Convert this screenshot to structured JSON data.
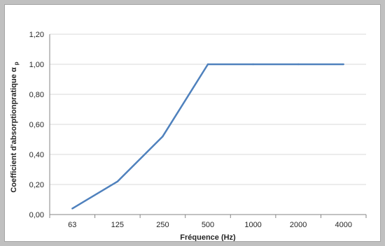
{
  "chart_data": {
    "type": "line",
    "categories": [
      "63",
      "125",
      "250",
      "500",
      "1000",
      "2000",
      "4000"
    ],
    "series": [
      {
        "values": [
          0.04,
          0.22,
          0.52,
          1.0,
          1.0,
          1.0,
          1.0
        ],
        "color": "#4f81bd"
      }
    ],
    "xlabel": "Fréquence (Hz)",
    "ylabel_main": "Coefficient d'absorptionpratique α",
    "ylabel_sub": "p",
    "ylim": [
      0,
      1.2
    ],
    "yticks": [
      0,
      0.2,
      0.4,
      0.6,
      0.8,
      1.0,
      1.2
    ],
    "ytick_labels": [
      "0,00",
      "0,20",
      "0,40",
      "0,60",
      "0,80",
      "1,00",
      "1,20"
    ],
    "grid": "horizontal"
  },
  "colors": {
    "gridline": "#d9d9d9",
    "axis": "#868686",
    "background": "#ffffff",
    "frame": "#c0c0c0"
  }
}
